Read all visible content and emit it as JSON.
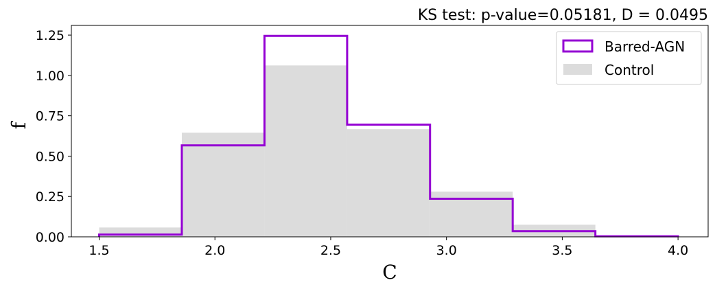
{
  "chart_data": {
    "type": "bar",
    "title": "KS test: p-value=0.05181, D = 0.0495",
    "xlabel": "C",
    "ylabel": "f",
    "xlim": [
      1.38,
      4.13
    ],
    "ylim": [
      0,
      1.31
    ],
    "xticks": [
      1.5,
      2.0,
      2.5,
      3.0,
      3.5,
      4.0
    ],
    "xtick_labels": [
      "1.5",
      "2.0",
      "2.5",
      "3.0",
      "3.5",
      "4.0"
    ],
    "yticks": [
      0,
      0.25,
      0.5,
      0.75,
      1.0,
      1.25
    ],
    "ytick_labels": [
      "0.00",
      "0.25",
      "0.50",
      "0.75",
      "1.00",
      "1.25"
    ],
    "bin_edges": [
      1.5,
      1.857,
      2.214,
      2.571,
      2.929,
      3.286,
      3.643,
      4.0
    ],
    "series": [
      {
        "name": "Barred-AGN",
        "style": "step",
        "color": "#9400D3",
        "values": [
          0.014,
          0.567,
          1.245,
          0.695,
          0.236,
          0.035,
          0.003
        ]
      },
      {
        "name": "Control",
        "style": "filled",
        "color": "#DCDCDC",
        "values": [
          0.058,
          0.645,
          1.062,
          0.667,
          0.28,
          0.075,
          0.006
        ]
      }
    ],
    "legend_position": "top-right",
    "grid": false
  }
}
